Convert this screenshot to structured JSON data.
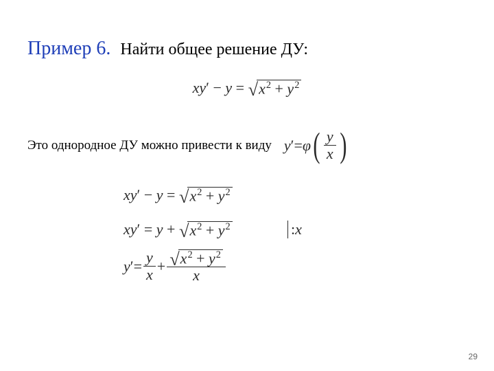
{
  "title": {
    "label": "Пример 6.",
    "text": "Найти общее решение ДУ:"
  },
  "colors": {
    "title_label": "#1f3fb8",
    "text": "#000000",
    "math": "#2b2b2b",
    "bg": "#ffffff"
  },
  "fonts": {
    "title_label_size": 28,
    "title_text_size": 24,
    "sub_size": 19,
    "math_size": 22
  },
  "main_equation": {
    "lhs_a": "xy",
    "prime": "′",
    "minus": " − ",
    "lhs_b": "y",
    "eq": " = ",
    "rad_a": "x",
    "sup": "2",
    "plus": " + ",
    "rad_b": "y"
  },
  "sub": {
    "text": "Это однородное ДУ можно привести к виду"
  },
  "phi_equation": {
    "y": "y",
    "prime": "′",
    "eq": " = ",
    "phi": "φ",
    "frac_num": "y",
    "frac_den": "x"
  },
  "deriv": {
    "line1": {
      "a": "xy",
      "prime": "′",
      "minus": " − ",
      "b": "y",
      "eq": " = ",
      "r1": "x",
      "sup": "2",
      "plus": " + ",
      "r2": "y"
    },
    "line2": {
      "a": "xy",
      "prime": "′",
      "eq": " = ",
      "b": "y",
      "plus1": " + ",
      "r1": "x",
      "sup": "2",
      "plus2": " + ",
      "r2": "y",
      "div_colon": ":",
      "div_x": " x"
    },
    "line3": {
      "y": "y",
      "prime": "′",
      "eq": " = ",
      "f1n": "y",
      "f1d": "x",
      "plus": " + ",
      "r1": "x",
      "sup": "2",
      "plus2": " + ",
      "r2": "y",
      "f2d": "x"
    }
  },
  "page": "29"
}
